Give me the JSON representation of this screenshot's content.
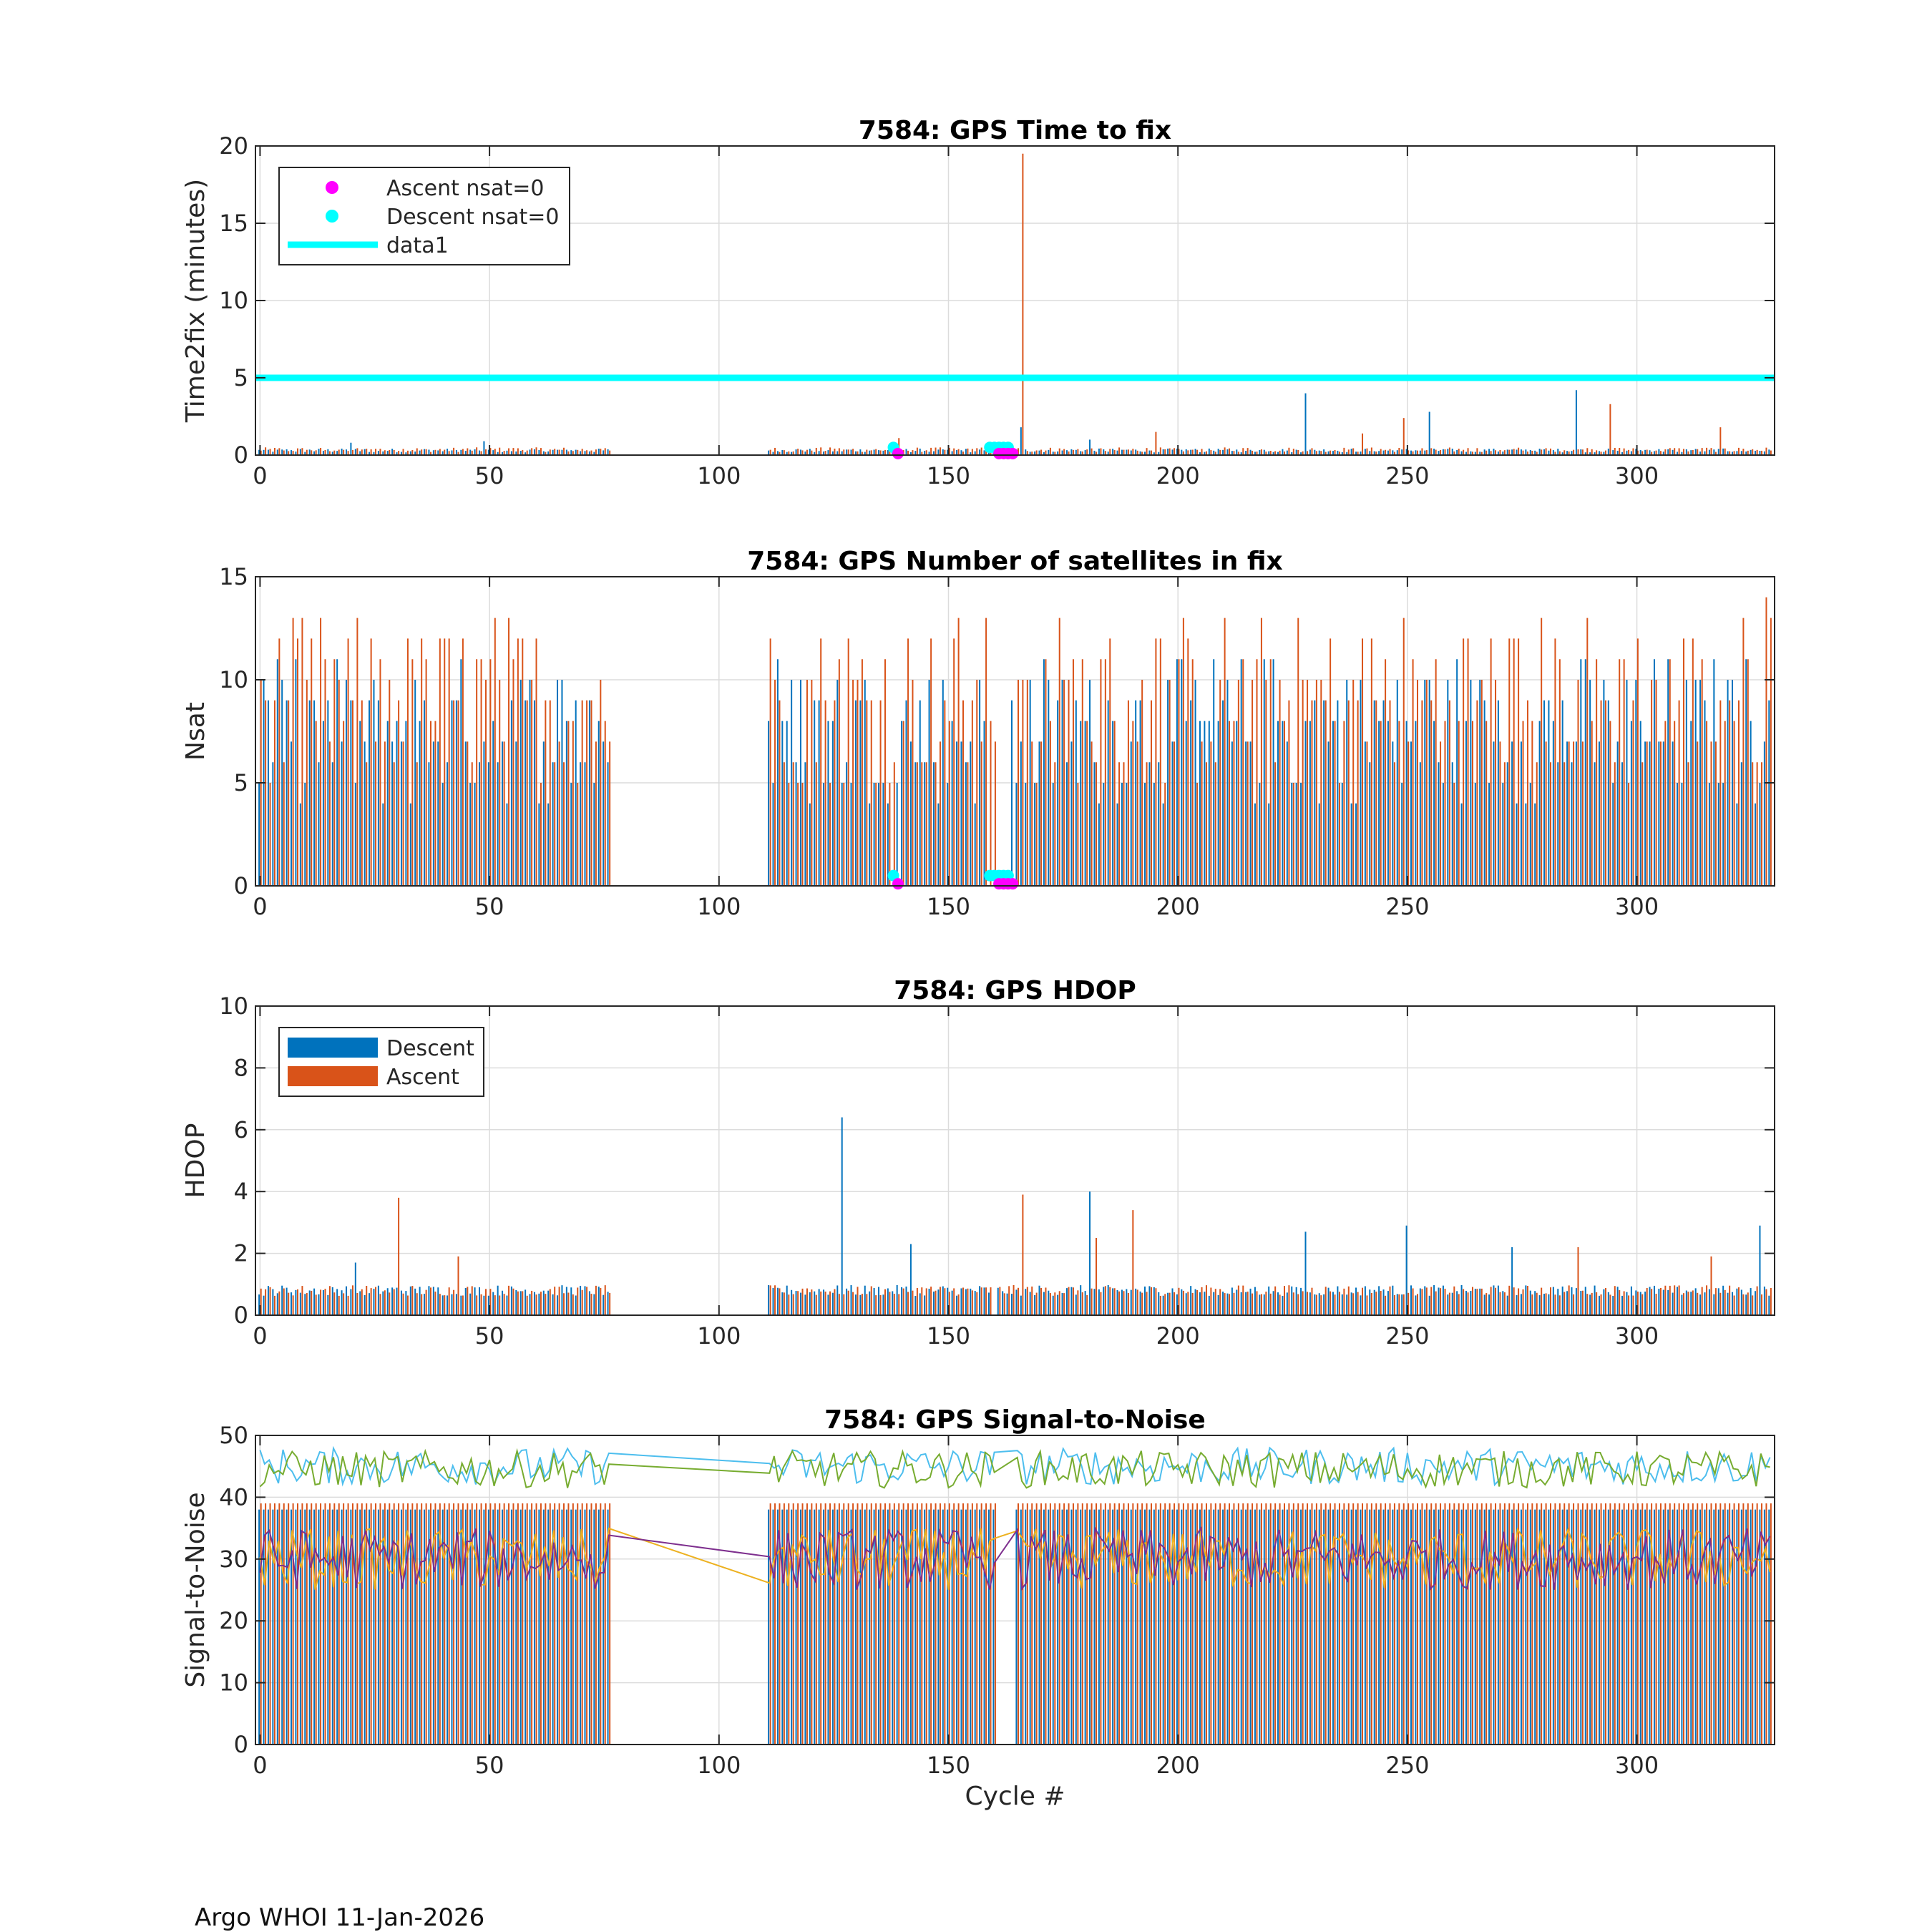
{
  "figure": {
    "footer": "Argo WHOI 11-Jan-2026",
    "xlabel": "Cycle #"
  },
  "colors": {
    "descent": "#0072BD",
    "ascent": "#D95319",
    "magenta": "#FF00FF",
    "cyan": "#00FFFF",
    "snr_line1": "#4DBEEE",
    "snr_line2": "#77AC30",
    "snr_line3": "#EDB120",
    "snr_line4": "#7E2F8E"
  },
  "chart_data": [
    {
      "id": "time2fix",
      "type": "bar",
      "title": "7584: GPS Time to fix",
      "xlabel": "",
      "ylabel": "Time2fix (minutes)",
      "xlim": [
        -1,
        330
      ],
      "ylim": [
        0,
        20
      ],
      "xticks": [
        0,
        50,
        100,
        150,
        200,
        250,
        300
      ],
      "yticks": [
        0,
        5,
        10,
        15,
        20
      ],
      "grid": true,
      "legend": {
        "location": "top-left",
        "entries": [
          "Ascent nsat=0",
          "Descent nsat=0",
          "data1"
        ]
      },
      "series": [
        {
          "name": "Descent",
          "base": 0.3,
          "amp": 0.25,
          "spikes": [
            [
              20,
              0.8
            ],
            [
              49,
              0.9
            ],
            [
              138,
              0.8
            ],
            [
              166,
              1.8
            ],
            [
              181,
              1.0
            ],
            [
              228,
              4.0
            ],
            [
              255,
              2.8
            ],
            [
              287,
              4.2
            ]
          ]
        },
        {
          "name": "Ascent",
          "base": 0.35,
          "amp": 0.3,
          "spikes": [
            [
              139,
              1.1
            ],
            [
              166,
              19.5
            ],
            [
              195,
              1.5
            ],
            [
              240,
              1.4
            ],
            [
              249,
              2.4
            ],
            [
              294,
              3.3
            ],
            [
              318,
              1.8
            ]
          ]
        }
      ],
      "reference_line": {
        "name": "data1",
        "y": 5
      },
      "markers": {
        "ascent_nsat0": [
          139,
          161,
          162,
          163,
          164
        ],
        "descent_nsat0": [
          138,
          159,
          160,
          161,
          162,
          163
        ]
      },
      "gaps": [
        [
          76,
          111
        ]
      ]
    },
    {
      "id": "nsat",
      "type": "bar",
      "title": "7584: GPS Number of satellites in fix",
      "xlabel": "",
      "ylabel": "Nsat",
      "xlim": [
        -1,
        330
      ],
      "ylim": [
        0,
        15
      ],
      "xticks": [
        0,
        50,
        100,
        150,
        200,
        250,
        300
      ],
      "yticks": [
        0,
        5,
        10,
        15
      ],
      "grid": true,
      "series": [
        {
          "name": "Descent",
          "min": 4,
          "max": 11
        },
        {
          "name": "Ascent",
          "min": 4,
          "max": 13,
          "spikes": [
            [
              328,
              14
            ],
            [
              329,
              13
            ]
          ]
        }
      ],
      "markers": {
        "ascent_nsat0": [
          139,
          161,
          162,
          163,
          164
        ],
        "descent_nsat0": [
          138,
          159,
          160,
          161,
          162,
          163
        ]
      },
      "gaps": [
        [
          76,
          111
        ]
      ]
    },
    {
      "id": "hdop",
      "type": "bar",
      "title": "7584: GPS HDOP",
      "xlabel": "",
      "ylabel": "HDOP",
      "xlim": [
        -1,
        330
      ],
      "ylim": [
        0,
        10
      ],
      "xticks": [
        0,
        50,
        100,
        150,
        200,
        250,
        300
      ],
      "yticks": [
        0,
        2,
        4,
        6,
        8,
        10
      ],
      "grid": true,
      "legend": {
        "location": "top-left",
        "entries": [
          "Descent",
          "Ascent"
        ]
      },
      "series": [
        {
          "name": "Descent",
          "base": 0.8,
          "amp": 0.35,
          "spikes": [
            [
              21,
              1.7
            ],
            [
              127,
              6.4
            ],
            [
              142,
              2.3
            ],
            [
              181,
              4.0
            ],
            [
              228,
              2.7
            ],
            [
              250,
              2.9
            ],
            [
              273,
              2.2
            ],
            [
              327,
              2.9
            ]
          ]
        },
        {
          "name": "Ascent",
          "base": 0.8,
          "amp": 0.35,
          "spikes": [
            [
              30,
              3.8
            ],
            [
              43,
              1.9
            ],
            [
              166,
              3.9
            ],
            [
              182,
              2.5
            ],
            [
              190,
              3.4
            ],
            [
              287,
              2.2
            ],
            [
              316,
              1.9
            ]
          ]
        }
      ],
      "gaps": [
        [
          76,
          111
        ],
        [
          159,
          161
        ]
      ]
    },
    {
      "id": "snr",
      "type": "line",
      "title": "7584: GPS Signal-to-Noise",
      "xlabel": "Cycle #",
      "ylabel": "Signal-to-Noise",
      "xlim": [
        -1,
        330
      ],
      "ylim": [
        0,
        50
      ],
      "xticks": [
        0,
        50,
        100,
        150,
        200,
        250,
        300
      ],
      "yticks": [
        0,
        10,
        20,
        30,
        40,
        50
      ],
      "grid": true,
      "bars": {
        "descent_level": 38,
        "ascent_level": 39
      },
      "series": [
        {
          "name": "",
          "center": 45,
          "amp": 3
        },
        {
          "name": "",
          "center": 44.5,
          "amp": 3
        },
        {
          "name": "",
          "center": 30,
          "amp": 5
        },
        {
          "name": "",
          "center": 30,
          "amp": 5
        }
      ],
      "gaps": [
        [
          76,
          111
        ],
        [
          160,
          165
        ]
      ]
    }
  ]
}
